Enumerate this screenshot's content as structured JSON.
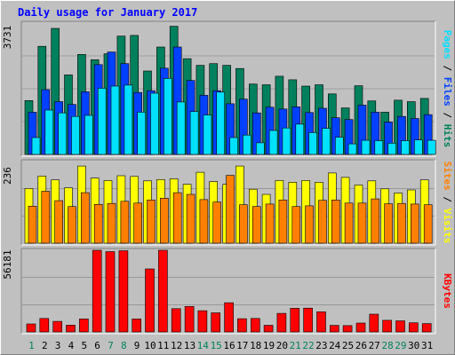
{
  "title": "Daily usage for January 2017",
  "colors": {
    "hits": "#00805c",
    "files": "#0040ff",
    "pages": "#00e0ff",
    "visits": "#ffff00",
    "sites": "#ff8000",
    "kbytes": "#ff0000",
    "title": "#0000ff",
    "weekday_label": "#000000",
    "weekend_label": "#00805c",
    "panel_bg": "#c0c0c0",
    "grid": "#808080"
  },
  "chart_data": [
    {
      "type": "bar",
      "panel": "hits-files-pages",
      "title": "Daily usage for January 2017",
      "ymax_label": "3731",
      "ylim": [
        0,
        3731
      ],
      "right_axis_label": [
        {
          "text": "Pages",
          "color": "#00e0ff"
        },
        {
          "text": " / ",
          "color": "#000000"
        },
        {
          "text": "Files",
          "color": "#0040ff"
        },
        {
          "text": " / ",
          "color": "#000000"
        },
        {
          "text": "Hits",
          "color": "#00805c"
        }
      ],
      "categories": [
        "1",
        "2",
        "3",
        "4",
        "5",
        "6",
        "7",
        "8",
        "9",
        "10",
        "11",
        "12",
        "13",
        "14",
        "15",
        "16",
        "17",
        "18",
        "19",
        "20",
        "21",
        "22",
        "23",
        "24",
        "25",
        "26",
        "27",
        "28",
        "29",
        "30",
        "31"
      ],
      "series": [
        {
          "name": "Hits",
          "values": [
            1530,
            3070,
            3580,
            2260,
            2840,
            2690,
            2860,
            3360,
            3380,
            2370,
            3050,
            3640,
            2720,
            2530,
            2580,
            2530,
            2440,
            2000,
            1980,
            2220,
            2120,
            1940,
            1980,
            1720,
            1320,
            1950,
            1520,
            1200,
            1540,
            1500,
            1590
          ]
        },
        {
          "name": "Files",
          "values": [
            1200,
            1840,
            1500,
            1420,
            1780,
            2550,
            2910,
            2580,
            1760,
            1810,
            2450,
            3050,
            2100,
            1680,
            1810,
            1440,
            1570,
            1180,
            1340,
            1290,
            1350,
            1190,
            1310,
            1040,
            990,
            1400,
            1200,
            920,
            1080,
            1020,
            1130
          ]
        },
        {
          "name": "Pages",
          "values": [
            480,
            1260,
            1180,
            1080,
            1110,
            1880,
            1940,
            1970,
            1200,
            1740,
            2160,
            1490,
            1220,
            1120,
            1770,
            480,
            550,
            330,
            680,
            750,
            860,
            620,
            740,
            490,
            300,
            400,
            390,
            320,
            390,
            410,
            400
          ]
        }
      ]
    },
    {
      "type": "bar",
      "panel": "visits-sites",
      "ymax_label": "236",
      "ylim": [
        0,
        236
      ],
      "right_axis_label": [
        {
          "text": "Sites",
          "color": "#ff8000"
        },
        {
          "text": " / ",
          "color": "#000000"
        },
        {
          "text": "Visits",
          "color": "#ffff00"
        }
      ],
      "categories": [
        "1",
        "2",
        "3",
        "4",
        "5",
        "6",
        "7",
        "8",
        "9",
        "10",
        "11",
        "12",
        "13",
        "14",
        "15",
        "16",
        "17",
        "18",
        "19",
        "20",
        "21",
        "22",
        "23",
        "24",
        "25",
        "26",
        "27",
        "28",
        "29",
        "30",
        "31"
      ],
      "series": [
        {
          "name": "Visits",
          "values": [
            158,
            194,
            183,
            160,
            223,
            188,
            181,
            195,
            193,
            180,
            184,
            186,
            170,
            205,
            178,
            170,
            223,
            156,
            141,
            181,
            176,
            181,
            176,
            203,
            190,
            168,
            180,
            157,
            145,
            154,
            183
          ]
        },
        {
          "name": "Sites",
          "values": [
            107,
            150,
            123,
            106,
            146,
            112,
            115,
            121,
            116,
            125,
            130,
            146,
            141,
            126,
            119,
            196,
            111,
            106,
            113,
            125,
            106,
            108,
            124,
            125,
            116,
            116,
            128,
            114,
            115,
            113,
            111
          ]
        }
      ]
    },
    {
      "type": "bar",
      "panel": "kbytes",
      "ymax_label": "56181",
      "ylim": [
        0,
        56181
      ],
      "right_axis_label": [
        {
          "text": "KBytes",
          "color": "#ff0000"
        }
      ],
      "categories": [
        "1",
        "2",
        "3",
        "4",
        "5",
        "6",
        "7",
        "8",
        "9",
        "10",
        "11",
        "12",
        "13",
        "14",
        "15",
        "16",
        "17",
        "18",
        "19",
        "20",
        "21",
        "22",
        "23",
        "24",
        "25",
        "26",
        "27",
        "28",
        "29",
        "30",
        "31"
      ],
      "series": [
        {
          "name": "KBytes",
          "values": [
            5490,
            9260,
            7280,
            4630,
            8940,
            56180,
            55290,
            55870,
            8930,
            43360,
            56180,
            15970,
            17530,
            14580,
            13130,
            20100,
            9080,
            9280,
            4610,
            12770,
            16270,
            16350,
            13890,
            4540,
            4360,
            6120,
            12220,
            8000,
            7640,
            6270,
            5760
          ]
        }
      ]
    }
  ],
  "x_labels": {
    "days": [
      "1",
      "2",
      "3",
      "4",
      "5",
      "6",
      "7",
      "8",
      "9",
      "10",
      "11",
      "12",
      "13",
      "14",
      "15",
      "16",
      "17",
      "18",
      "19",
      "20",
      "21",
      "22",
      "23",
      "24",
      "25",
      "26",
      "27",
      "28",
      "29",
      "30",
      "31"
    ],
    "weekend_days": [
      "1",
      "7",
      "8",
      "14",
      "15",
      "21",
      "22",
      "28",
      "29"
    ]
  }
}
